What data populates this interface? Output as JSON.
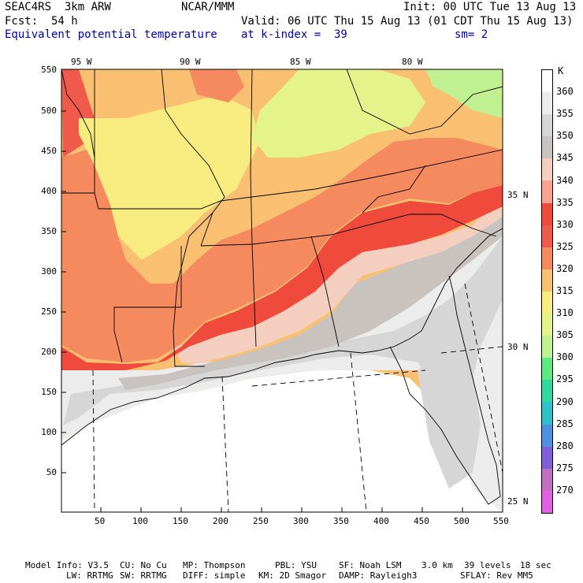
{
  "header": {
    "project": "SEAC4RS  3km ARW",
    "org": "NCAR/MMM",
    "init": "Init: 00 UTC Tue 13 Aug 13",
    "fcst": "Fcst:  54 h",
    "valid": "Valid: 06 UTC Thu 15 Aug 13 (01 CDT Thu 15 Aug 13)",
    "field": "Equivalent potential temperature",
    "level": "at k-index =  39",
    "smooth": "sm= 2"
  },
  "axes": {
    "x_ticks": [
      "50",
      "100",
      "150",
      "200",
      "250",
      "300",
      "350",
      "400",
      "450",
      "500",
      "550"
    ],
    "y_ticks": [
      "550",
      "500",
      "450",
      "400",
      "350",
      "300",
      "250",
      "200",
      "150",
      "100",
      "50"
    ],
    "lon_labels": [
      "95 W",
      "90 W",
      "85 W",
      "80 W"
    ],
    "lat_labels": [
      "35 N",
      "30 N",
      "25 N"
    ]
  },
  "colorbar": {
    "unit": "K",
    "levels": [
      "360",
      "355",
      "350",
      "345",
      "340",
      "335",
      "330",
      "325",
      "320",
      "315",
      "310",
      "305",
      "300",
      "295",
      "290",
      "285",
      "280",
      "275",
      "270"
    ],
    "colors": [
      "#ffffff",
      "#ececec",
      "#d6d6d6",
      "#c8c3be",
      "#f4cfc0",
      "#f8a38f",
      "#f04a3c",
      "#f05a4a",
      "#f48a5e",
      "#f8c070",
      "#f8ec80",
      "#e4f48a",
      "#c0f090",
      "#60e880",
      "#30d8a0",
      "#30c0c8",
      "#5090e0",
      "#8060d8",
      "#c070c0",
      "#e060e0"
    ]
  },
  "footer": {
    "line1": [
      "Model Info: V3.5",
      "CU: No Cu",
      "MP: Thompson",
      "PBL: YSU",
      "SF: Noah LSM",
      "3.0 km",
      "39 levels",
      "18 sec"
    ],
    "line2": [
      "LW: RRTMG",
      "SW: RRTMG",
      "DIFF: simple",
      "KM: 2D Smagor",
      "DAMP: Rayleigh3",
      "SFLAY: Rev MM5"
    ]
  }
}
